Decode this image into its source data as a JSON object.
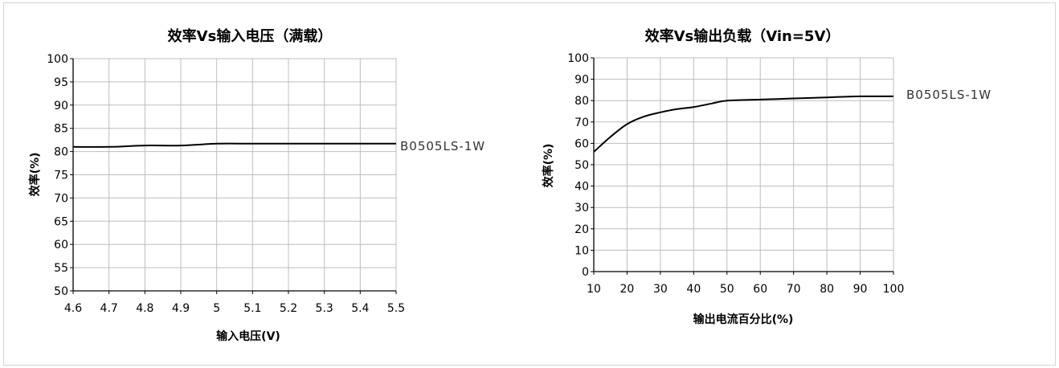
{
  "colors": {
    "grid": "#bdbdbd",
    "axis": "#000000",
    "line": "#000000",
    "border": "#d4d4d4"
  },
  "chart_data": [
    {
      "type": "line",
      "title": "效率Vs输入电压（满载）",
      "xlabel": "输入电压(V)",
      "ylabel": "效率(%)",
      "x": [
        4.6,
        4.7,
        4.8,
        4.9,
        5.0,
        5.1,
        5.2,
        5.3,
        5.4,
        5.5
      ],
      "x_tick_labels": [
        "4.6",
        "4.7",
        "4.8",
        "4.9",
        "5",
        "5.1",
        "5.2",
        "5.3",
        "5.4",
        "5.5"
      ],
      "y_tick_labels": [
        "100",
        "95",
        "90",
        "85",
        "80",
        "75",
        "70",
        "65",
        "60",
        "55",
        "50"
      ],
      "xlim": [
        4.6,
        5.5
      ],
      "ylim": [
        50,
        100
      ],
      "grid": true,
      "series": [
        {
          "name": "B0505LS-1W",
          "values": [
            81,
            81,
            81.3,
            81.3,
            81.7,
            81.7,
            81.7,
            81.7,
            81.7,
            81.7
          ]
        }
      ]
    },
    {
      "type": "line",
      "title": "效率Vs输出负载（Vin=5V）",
      "xlabel": "输出电流百分比(%)",
      "ylabel": "效率(%)",
      "x": [
        10,
        15,
        20,
        25,
        30,
        35,
        40,
        45,
        50,
        60,
        70,
        80,
        90,
        100
      ],
      "x_tick_labels": [
        "10",
        "20",
        "30",
        "40",
        "50",
        "60",
        "70",
        "80",
        "90",
        "100"
      ],
      "y_tick_labels": [
        "100",
        "90",
        "80",
        "70",
        "60",
        "50",
        "40",
        "30",
        "20",
        "10",
        "0"
      ],
      "xlim": [
        10,
        100
      ],
      "ylim": [
        0,
        100
      ],
      "grid": true,
      "series": [
        {
          "name": "B0505LS-1W",
          "values": [
            56,
            63,
            69,
            72.5,
            74.5,
            76,
            77,
            78.5,
            80,
            80.5,
            81,
            81.5,
            82,
            82
          ]
        }
      ]
    }
  ]
}
